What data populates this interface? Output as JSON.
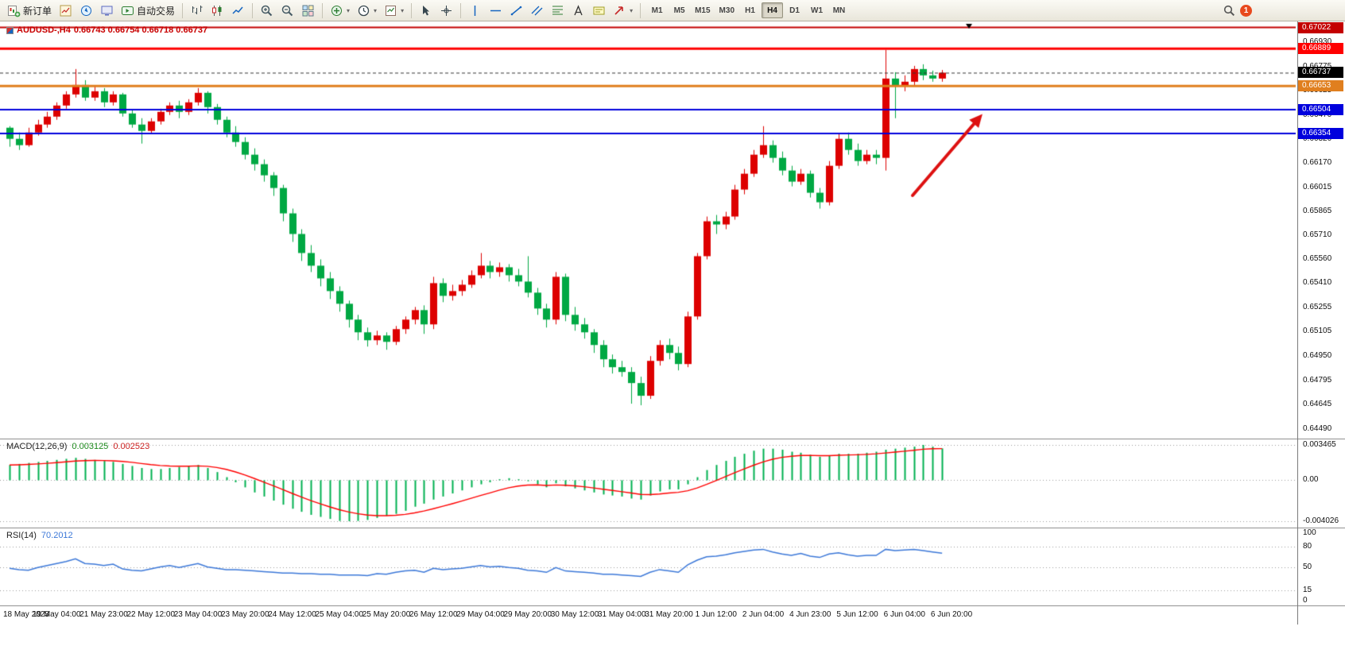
{
  "toolbar": {
    "new_order_label": "新订单",
    "auto_trading_label": "自动交易",
    "timeframes": [
      "M1",
      "M5",
      "M15",
      "M30",
      "H1",
      "H4",
      "D1",
      "W1",
      "MN"
    ],
    "active_timeframe": "H4",
    "notification_badge": "1"
  },
  "chart": {
    "title_text": "AUDUSD-,H4",
    "ohlc_text": "0.66743 0.66754 0.66718 0.66737"
  },
  "macd": {
    "title": "MACD(12,26,9)",
    "value_main": "0.003125",
    "value_signal": "0.002523",
    "scale": [
      "0.003465",
      "0.00",
      "-0.004026"
    ]
  },
  "rsi": {
    "title": "RSI(14)",
    "value": "70.2012",
    "scale": [
      "100",
      "80",
      "50",
      "15",
      "0"
    ]
  },
  "chart_data": {
    "type": "candlestick",
    "symbol": "AUDUSD-",
    "timeframe": "H4",
    "title": "AUDUSD-,H4",
    "ohlc_display": {
      "open": 0.66743,
      "high": 0.66754,
      "low": 0.66718,
      "close": 0.66737
    },
    "price_range": {
      "top": 0.67045,
      "bottom": 0.64445
    },
    "y_axis_labels": [
      "0.66930",
      "0.66775",
      "0.66625",
      "0.66470",
      "0.66320",
      "0.66170",
      "0.66015",
      "0.65865",
      "0.65710",
      "0.65560",
      "0.65410",
      "0.65255",
      "0.65105",
      "0.64950",
      "0.64795",
      "0.64645",
      "0.64490"
    ],
    "x_axis_labels": [
      "18 May 2023",
      "19 May 04:00",
      "21 May 23:00",
      "22 May 12:00",
      "23 May 04:00",
      "23 May 20:00",
      "24 May 12:00",
      "25 May 04:00",
      "25 May 20:00",
      "26 May 12:00",
      "29 May 04:00",
      "29 May 20:00",
      "30 May 12:00",
      "31 May 04:00",
      "31 May 20:00",
      "1 Jun 12:00",
      "2 Jun 04:00",
      "4 Jun 23:00",
      "5 Jun 12:00",
      "6 Jun 04:00",
      "6 Jun 20:00"
    ],
    "colors": {
      "up": "#dd0000",
      "down": "#00a843",
      "macd_bar": "#00b050",
      "macd_signal": "#ff0000",
      "rsi_line": "#3c78d8"
    },
    "hlines": [
      {
        "value": 0.67022,
        "label": "0.67022",
        "color": "#c40000",
        "width": 2
      },
      {
        "value": 0.66889,
        "label": "0.66889",
        "color": "#ff0000",
        "width": 3
      },
      {
        "value": 0.66653,
        "label": "0.66653",
        "color": "#e07f1f",
        "width": 3
      },
      {
        "value": 0.66504,
        "label": "0.66504",
        "color": "#0000dd",
        "width": 2
      },
      {
        "value": 0.66354,
        "label": "0.66354",
        "color": "#0000dd",
        "width": 2
      }
    ],
    "current_price": {
      "value": 0.66737,
      "label": "0.66737"
    },
    "arrow_annotation": {
      "from": [
        1148,
        219
      ],
      "to": [
        1232,
        121
      ],
      "color": "#dd1111"
    },
    "candles": [
      [
        0.6639,
        0.664,
        0.6627,
        0.6632
      ],
      [
        0.6632,
        0.6636,
        0.6625,
        0.6628
      ],
      [
        0.6628,
        0.6639,
        0.6627,
        0.6636
      ],
      [
        0.6636,
        0.6644,
        0.6634,
        0.6641
      ],
      [
        0.6641,
        0.6649,
        0.6639,
        0.6646
      ],
      [
        0.6646,
        0.6655,
        0.6644,
        0.6653
      ],
      [
        0.6653,
        0.6662,
        0.6651,
        0.666
      ],
      [
        0.666,
        0.6676,
        0.6658,
        0.6666
      ],
      [
        0.6666,
        0.6669,
        0.6656,
        0.6658
      ],
      [
        0.6658,
        0.6665,
        0.6656,
        0.6662
      ],
      [
        0.6662,
        0.6664,
        0.6652,
        0.6655
      ],
      [
        0.6655,
        0.6662,
        0.6653,
        0.666
      ],
      [
        0.666,
        0.6661,
        0.6646,
        0.6648
      ],
      [
        0.6648,
        0.665,
        0.6639,
        0.6641
      ],
      [
        0.6641,
        0.6645,
        0.6629,
        0.6637
      ],
      [
        0.6637,
        0.6645,
        0.6635,
        0.6643
      ],
      [
        0.6643,
        0.6651,
        0.6641,
        0.6649
      ],
      [
        0.6649,
        0.6655,
        0.6647,
        0.6653
      ],
      [
        0.6653,
        0.6656,
        0.6645,
        0.6649
      ],
      [
        0.6649,
        0.6657,
        0.6647,
        0.6655
      ],
      [
        0.6655,
        0.6664,
        0.6653,
        0.6661
      ],
      [
        0.6661,
        0.6662,
        0.6648,
        0.6652
      ],
      [
        0.6652,
        0.6654,
        0.6641,
        0.6644
      ],
      [
        0.6644,
        0.6646,
        0.6633,
        0.6636
      ],
      [
        0.6636,
        0.664,
        0.6627,
        0.663
      ],
      [
        0.663,
        0.6633,
        0.6619,
        0.6622
      ],
      [
        0.6622,
        0.6626,
        0.6612,
        0.6616
      ],
      [
        0.6616,
        0.6619,
        0.6605,
        0.6609
      ],
      [
        0.6609,
        0.6611,
        0.6596,
        0.6601
      ],
      [
        0.6601,
        0.6603,
        0.658,
        0.6585
      ],
      [
        0.6585,
        0.6588,
        0.6567,
        0.6572
      ],
      [
        0.6572,
        0.6575,
        0.6555,
        0.656
      ],
      [
        0.656,
        0.6565,
        0.6548,
        0.6552
      ],
      [
        0.6552,
        0.6556,
        0.6539,
        0.6544
      ],
      [
        0.6544,
        0.6548,
        0.6531,
        0.6536
      ],
      [
        0.6536,
        0.6539,
        0.6523,
        0.6528
      ],
      [
        0.6528,
        0.653,
        0.6513,
        0.6518
      ],
      [
        0.6518,
        0.6521,
        0.6505,
        0.651
      ],
      [
        0.651,
        0.6513,
        0.6501,
        0.6505
      ],
      [
        0.6505,
        0.6511,
        0.6502,
        0.6508
      ],
      [
        0.6508,
        0.651,
        0.6499,
        0.6504
      ],
      [
        0.6504,
        0.6514,
        0.6502,
        0.6512
      ],
      [
        0.6512,
        0.652,
        0.6509,
        0.6518
      ],
      [
        0.6518,
        0.6526,
        0.6515,
        0.6524
      ],
      [
        0.6524,
        0.6527,
        0.6509,
        0.6515
      ],
      [
        0.6515,
        0.6545,
        0.6512,
        0.6541
      ],
      [
        0.6541,
        0.6544,
        0.6529,
        0.6533
      ],
      [
        0.6533,
        0.654,
        0.653,
        0.6536
      ],
      [
        0.6536,
        0.6543,
        0.6533,
        0.654
      ],
      [
        0.654,
        0.6549,
        0.6538,
        0.6546
      ],
      [
        0.6546,
        0.656,
        0.6544,
        0.6552
      ],
      [
        0.6552,
        0.6555,
        0.6544,
        0.6548
      ],
      [
        0.6548,
        0.6554,
        0.6545,
        0.6551
      ],
      [
        0.6551,
        0.6553,
        0.6542,
        0.6546
      ],
      [
        0.6546,
        0.655,
        0.6539,
        0.6542
      ],
      [
        0.6542,
        0.6558,
        0.6532,
        0.6535
      ],
      [
        0.6535,
        0.6538,
        0.6521,
        0.6525
      ],
      [
        0.6525,
        0.6528,
        0.6513,
        0.6518
      ],
      [
        0.6518,
        0.6548,
        0.6515,
        0.6545
      ],
      [
        0.6545,
        0.6547,
        0.6517,
        0.6521
      ],
      [
        0.6521,
        0.6526,
        0.6511,
        0.6515
      ],
      [
        0.6515,
        0.6519,
        0.6506,
        0.651
      ],
      [
        0.651,
        0.6512,
        0.6497,
        0.6502
      ],
      [
        0.6502,
        0.6505,
        0.6488,
        0.6493
      ],
      [
        0.6493,
        0.6496,
        0.6484,
        0.6488
      ],
      [
        0.6488,
        0.6492,
        0.6482,
        0.6485
      ],
      [
        0.6485,
        0.6488,
        0.6465,
        0.6478
      ],
      [
        0.6478,
        0.6482,
        0.6464,
        0.647
      ],
      [
        0.647,
        0.6495,
        0.6468,
        0.6492
      ],
      [
        0.6492,
        0.6505,
        0.6489,
        0.6502
      ],
      [
        0.6502,
        0.6506,
        0.6493,
        0.6497
      ],
      [
        0.6497,
        0.6501,
        0.6486,
        0.649
      ],
      [
        0.649,
        0.6523,
        0.6488,
        0.652
      ],
      [
        0.652,
        0.656,
        0.6518,
        0.6558
      ],
      [
        0.6558,
        0.6583,
        0.6556,
        0.658
      ],
      [
        0.658,
        0.6584,
        0.6572,
        0.6578
      ],
      [
        0.6578,
        0.6586,
        0.6575,
        0.6583
      ],
      [
        0.6583,
        0.6603,
        0.6581,
        0.66
      ],
      [
        0.66,
        0.6613,
        0.6597,
        0.661
      ],
      [
        0.661,
        0.6625,
        0.6608,
        0.6622
      ],
      [
        0.6622,
        0.664,
        0.662,
        0.6628
      ],
      [
        0.6628,
        0.6631,
        0.6617,
        0.662
      ],
      [
        0.662,
        0.6624,
        0.6609,
        0.6612
      ],
      [
        0.6612,
        0.6615,
        0.6602,
        0.6605
      ],
      [
        0.6605,
        0.6613,
        0.6603,
        0.661
      ],
      [
        0.661,
        0.6612,
        0.6595,
        0.6598
      ],
      [
        0.6598,
        0.6601,
        0.6588,
        0.6592
      ],
      [
        0.6592,
        0.6618,
        0.659,
        0.6615
      ],
      [
        0.6615,
        0.6635,
        0.6613,
        0.6632
      ],
      [
        0.6632,
        0.6636,
        0.6622,
        0.6625
      ],
      [
        0.6625,
        0.6629,
        0.6615,
        0.6618
      ],
      [
        0.6618,
        0.6625,
        0.6616,
        0.6622
      ],
      [
        0.6622,
        0.6625,
        0.6616,
        0.662
      ],
      [
        0.662,
        0.6688,
        0.6612,
        0.667
      ],
      [
        0.667,
        0.6674,
        0.6645,
        0.6665
      ],
      [
        0.6665,
        0.6672,
        0.6662,
        0.6668
      ],
      [
        0.6668,
        0.6678,
        0.6665,
        0.6676
      ],
      [
        0.6676,
        0.6679,
        0.6669,
        0.6672
      ],
      [
        0.6672,
        0.6675,
        0.6668,
        0.667
      ],
      [
        0.667,
        0.66754,
        0.6668,
        0.66737
      ]
    ],
    "macd_range": {
      "top": 0.003465,
      "bottom": -0.004026
    },
    "macd_values": [
      0.0015,
      0.0016,
      0.0017,
      0.0018,
      0.0019,
      0.002,
      0.0021,
      0.0022,
      0.0021,
      0.002,
      0.0019,
      0.0018,
      0.0016,
      0.0014,
      0.0012,
      0.0011,
      0.0011,
      0.0012,
      0.0013,
      0.0014,
      0.0015,
      0.0012,
      0.0008,
      0.0003,
      -0.0002,
      -0.0007,
      -0.0012,
      -0.0016,
      -0.002,
      -0.0024,
      -0.0028,
      -0.0031,
      -0.0034,
      -0.0036,
      -0.0038,
      -0.004,
      -0.004026,
      -0.004,
      -0.0039,
      -0.0037,
      -0.0035,
      -0.0033,
      -0.003,
      -0.0026,
      -0.0023,
      -0.0019,
      -0.0016,
      -0.0013,
      -0.001,
      -0.0007,
      -0.0004,
      -0.0002,
      0.0001,
      0.0002,
      0.0001,
      -0.0001,
      -0.0004,
      -0.0007,
      -0.0003,
      -0.0006,
      -0.0008,
      -0.001,
      -0.0012,
      -0.0014,
      -0.0015,
      -0.0016,
      -0.0018,
      -0.0019,
      -0.0015,
      -0.0011,
      -0.0009,
      -0.0009,
      -0.0004,
      0.0003,
      0.001,
      0.0015,
      0.0019,
      0.0023,
      0.0026,
      0.0029,
      0.0031,
      0.0031,
      0.003,
      0.0028,
      0.0027,
      0.0025,
      0.0023,
      0.0024,
      0.0026,
      0.0026,
      0.0026,
      0.0027,
      0.0028,
      0.003,
      0.0031,
      0.0032,
      0.0033,
      0.003465,
      0.0033,
      0.003125
    ],
    "rsi_levels": [
      80,
      50,
      15
    ],
    "rsi_values": [
      48,
      46,
      45,
      49,
      52,
      55,
      58,
      62,
      55,
      54,
      52,
      54,
      47,
      45,
      44,
      47,
      50,
      52,
      49,
      52,
      55,
      50,
      48,
      46,
      46,
      45,
      44,
      43,
      42,
      41,
      41,
      40,
      40,
      39,
      39,
      38,
      38,
      38,
      37,
      40,
      39,
      42,
      44,
      45,
      42,
      48,
      46,
      47,
      48,
      50,
      52,
      50,
      51,
      49,
      48,
      45,
      44,
      42,
      49,
      44,
      43,
      42,
      41,
      39,
      39,
      38,
      37,
      36,
      42,
      46,
      44,
      42,
      53,
      60,
      65,
      66,
      68,
      71,
      73,
      75,
      76,
      72,
      69,
      67,
      70,
      66,
      64,
      69,
      71,
      68,
      66,
      67,
      67,
      76,
      74,
      75,
      76,
      74,
      72,
      70.2
    ]
  }
}
